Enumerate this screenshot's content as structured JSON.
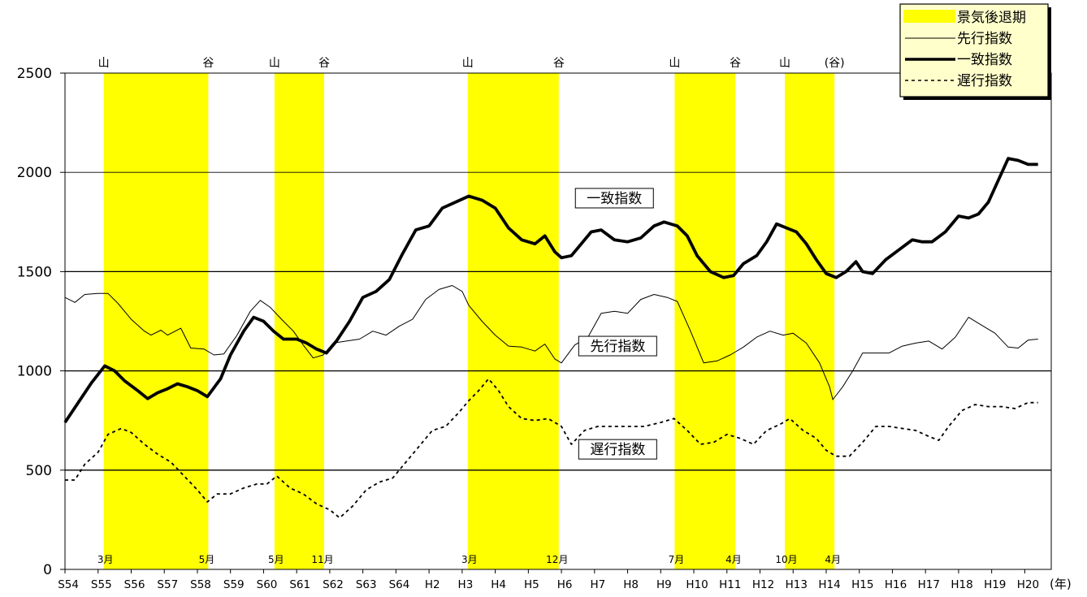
{
  "chart_data": {
    "type": "line",
    "x_unit": "(年)",
    "ylim": [
      0,
      2500
    ],
    "yticks": [
      0,
      500,
      1000,
      1500,
      2000,
      2500
    ],
    "xlabels": [
      "S54",
      "S55",
      "S56",
      "S57",
      "S58",
      "S59",
      "S60",
      "S61",
      "S62",
      "S63",
      "S64",
      "H2",
      "H3",
      "H4",
      "H5",
      "H6",
      "H7",
      "H8",
      "H9",
      "H10",
      "H11",
      "H12",
      "H13",
      "H14",
      "H15",
      "H16",
      "H17",
      "H18",
      "H19",
      "H20"
    ],
    "gridlines": [
      500,
      1000,
      1500,
      2000
    ],
    "legend": {
      "position": "top-right",
      "items": [
        {
          "label": "景気後退期",
          "style": "yellow-band"
        },
        {
          "label": "先行指数",
          "style": "thin-line"
        },
        {
          "label": "一致指数",
          "style": "thick-line"
        },
        {
          "label": "遅行指数",
          "style": "dashed-line"
        }
      ]
    },
    "recessions": [
      {
        "start": 1980.17,
        "end": 1983.33,
        "peak_label": "山",
        "trough_label": "谷",
        "start_month": "3月",
        "end_month": "5月"
      },
      {
        "start": 1985.33,
        "end": 1986.83,
        "peak_label": "山",
        "trough_label": "谷",
        "start_month": "5月",
        "end_month": "11月"
      },
      {
        "start": 1991.17,
        "end": 1993.92,
        "peak_label": "山",
        "trough_label": "谷",
        "start_month": "3月",
        "end_month": "12月"
      },
      {
        "start": 1997.42,
        "end": 1999.25,
        "peak_label": "山",
        "trough_label": "谷",
        "start_month": "7月",
        "end_month": "4月"
      },
      {
        "start": 2000.75,
        "end": 2002.25,
        "peak_label": "山",
        "trough_label": "(谷)",
        "start_month": "10月",
        "end_month": "4月"
      }
    ],
    "inline_labels": [
      {
        "text": "一致指数",
        "x": 1995.6,
        "y": 1870
      },
      {
        "text": "先行指数",
        "x": 1995.7,
        "y": 1125
      },
      {
        "text": "遅行指数",
        "x": 1995.7,
        "y": 605
      }
    ],
    "series": [
      {
        "name": "先行指数",
        "style": "thin",
        "points": [
          [
            1979.0,
            1370
          ],
          [
            1979.3,
            1345
          ],
          [
            1979.6,
            1385
          ],
          [
            1980.0,
            1390
          ],
          [
            1980.3,
            1390
          ],
          [
            1980.6,
            1340
          ],
          [
            1981.0,
            1260
          ],
          [
            1981.4,
            1200
          ],
          [
            1981.6,
            1180
          ],
          [
            1981.9,
            1205
          ],
          [
            1982.1,
            1180
          ],
          [
            1982.5,
            1215
          ],
          [
            1982.8,
            1115
          ],
          [
            1983.2,
            1110
          ],
          [
            1983.5,
            1080
          ],
          [
            1983.8,
            1085
          ],
          [
            1984.2,
            1180
          ],
          [
            1984.6,
            1300
          ],
          [
            1984.9,
            1355
          ],
          [
            1985.2,
            1320
          ],
          [
            1985.6,
            1250
          ],
          [
            1985.9,
            1200
          ],
          [
            1986.2,
            1130
          ],
          [
            1986.5,
            1065
          ],
          [
            1986.8,
            1080
          ],
          [
            1987.1,
            1140
          ],
          [
            1987.5,
            1150
          ],
          [
            1987.9,
            1160
          ],
          [
            1988.3,
            1200
          ],
          [
            1988.7,
            1180
          ],
          [
            1989.1,
            1225
          ],
          [
            1989.5,
            1260
          ],
          [
            1989.9,
            1360
          ],
          [
            1990.3,
            1410
          ],
          [
            1990.7,
            1430
          ],
          [
            1991.0,
            1400
          ],
          [
            1991.2,
            1330
          ],
          [
            1991.6,
            1250
          ],
          [
            1992.0,
            1180
          ],
          [
            1992.4,
            1125
          ],
          [
            1992.8,
            1120
          ],
          [
            1993.2,
            1100
          ],
          [
            1993.5,
            1135
          ],
          [
            1993.8,
            1060
          ],
          [
            1994.0,
            1040
          ],
          [
            1994.4,
            1130
          ],
          [
            1994.8,
            1170
          ],
          [
            1995.2,
            1290
          ],
          [
            1995.6,
            1300
          ],
          [
            1996.0,
            1290
          ],
          [
            1996.4,
            1360
          ],
          [
            1996.8,
            1385
          ],
          [
            1997.2,
            1370
          ],
          [
            1997.5,
            1350
          ],
          [
            1997.9,
            1200
          ],
          [
            1998.3,
            1040
          ],
          [
            1998.7,
            1050
          ],
          [
            1999.1,
            1080
          ],
          [
            1999.5,
            1120
          ],
          [
            1999.9,
            1170
          ],
          [
            2000.3,
            1200
          ],
          [
            2000.7,
            1180
          ],
          [
            2001.0,
            1190
          ],
          [
            2001.4,
            1140
          ],
          [
            2001.8,
            1040
          ],
          [
            2002.1,
            920
          ],
          [
            2002.2,
            855
          ],
          [
            2002.5,
            920
          ],
          [
            2002.8,
            1000
          ],
          [
            2003.1,
            1090
          ],
          [
            2003.5,
            1090
          ],
          [
            2003.9,
            1090
          ],
          [
            2004.3,
            1125
          ],
          [
            2004.7,
            1140
          ],
          [
            2005.1,
            1150
          ],
          [
            2005.5,
            1110
          ],
          [
            2005.9,
            1170
          ],
          [
            2006.3,
            1270
          ],
          [
            2006.7,
            1230
          ],
          [
            2007.1,
            1190
          ],
          [
            2007.5,
            1120
          ],
          [
            2007.8,
            1115
          ],
          [
            2008.1,
            1155
          ],
          [
            2008.4,
            1160
          ]
        ]
      },
      {
        "name": "一致指数",
        "style": "thick",
        "points": [
          [
            1979.0,
            740
          ],
          [
            1979.4,
            840
          ],
          [
            1979.8,
            940
          ],
          [
            1980.2,
            1025
          ],
          [
            1980.5,
            1000
          ],
          [
            1980.8,
            950
          ],
          [
            1981.2,
            900
          ],
          [
            1981.5,
            860
          ],
          [
            1981.8,
            890
          ],
          [
            1982.1,
            910
          ],
          [
            1982.4,
            935
          ],
          [
            1982.7,
            920
          ],
          [
            1983.0,
            900
          ],
          [
            1983.3,
            870
          ],
          [
            1983.7,
            960
          ],
          [
            1984.0,
            1080
          ],
          [
            1984.4,
            1200
          ],
          [
            1984.7,
            1270
          ],
          [
            1985.0,
            1250
          ],
          [
            1985.3,
            1200
          ],
          [
            1985.6,
            1160
          ],
          [
            1986.0,
            1160
          ],
          [
            1986.3,
            1140
          ],
          [
            1986.6,
            1110
          ],
          [
            1986.9,
            1090
          ],
          [
            1987.2,
            1150
          ],
          [
            1987.6,
            1250
          ],
          [
            1988.0,
            1370
          ],
          [
            1988.4,
            1400
          ],
          [
            1988.8,
            1460
          ],
          [
            1989.2,
            1590
          ],
          [
            1989.6,
            1710
          ],
          [
            1990.0,
            1730
          ],
          [
            1990.4,
            1820
          ],
          [
            1990.8,
            1850
          ],
          [
            1991.2,
            1880
          ],
          [
            1991.6,
            1860
          ],
          [
            1992.0,
            1820
          ],
          [
            1992.4,
            1720
          ],
          [
            1992.8,
            1660
          ],
          [
            1993.2,
            1640
          ],
          [
            1993.5,
            1680
          ],
          [
            1993.8,
            1600
          ],
          [
            1994.0,
            1570
          ],
          [
            1994.3,
            1580
          ],
          [
            1994.6,
            1640
          ],
          [
            1994.9,
            1700
          ],
          [
            1995.2,
            1710
          ],
          [
            1995.6,
            1660
          ],
          [
            1996.0,
            1650
          ],
          [
            1996.4,
            1670
          ],
          [
            1996.8,
            1730
          ],
          [
            1997.1,
            1750
          ],
          [
            1997.5,
            1730
          ],
          [
            1997.8,
            1680
          ],
          [
            1998.1,
            1580
          ],
          [
            1998.5,
            1500
          ],
          [
            1998.9,
            1470
          ],
          [
            1999.2,
            1480
          ],
          [
            1999.5,
            1540
          ],
          [
            1999.9,
            1580
          ],
          [
            2000.2,
            1650
          ],
          [
            2000.5,
            1740
          ],
          [
            2000.8,
            1720
          ],
          [
            2001.1,
            1700
          ],
          [
            2001.4,
            1640
          ],
          [
            2001.7,
            1560
          ],
          [
            2002.0,
            1490
          ],
          [
            2002.3,
            1470
          ],
          [
            2002.6,
            1500
          ],
          [
            2002.9,
            1550
          ],
          [
            2003.1,
            1500
          ],
          [
            2003.4,
            1490
          ],
          [
            2003.8,
            1560
          ],
          [
            2004.2,
            1610
          ],
          [
            2004.6,
            1660
          ],
          [
            2004.9,
            1650
          ],
          [
            2005.2,
            1650
          ],
          [
            2005.6,
            1700
          ],
          [
            2006.0,
            1780
          ],
          [
            2006.3,
            1770
          ],
          [
            2006.6,
            1790
          ],
          [
            2006.9,
            1850
          ],
          [
            2007.2,
            1960
          ],
          [
            2007.5,
            2070
          ],
          [
            2007.8,
            2060
          ],
          [
            2008.1,
            2040
          ],
          [
            2008.4,
            2040
          ]
        ]
      },
      {
        "name": "遅行指数",
        "style": "dashed",
        "points": [
          [
            1979.0,
            450
          ],
          [
            1979.3,
            450
          ],
          [
            1979.6,
            530
          ],
          [
            1980.0,
            590
          ],
          [
            1980.3,
            680
          ],
          [
            1980.7,
            710
          ],
          [
            1981.0,
            690
          ],
          [
            1981.4,
            630
          ],
          [
            1981.8,
            580
          ],
          [
            1982.2,
            540
          ],
          [
            1982.6,
            470
          ],
          [
            1983.0,
            400
          ],
          [
            1983.3,
            340
          ],
          [
            1983.6,
            380
          ],
          [
            1984.0,
            380
          ],
          [
            1984.4,
            410
          ],
          [
            1984.8,
            430
          ],
          [
            1985.1,
            430
          ],
          [
            1985.4,
            470
          ],
          [
            1985.8,
            410
          ],
          [
            1986.2,
            380
          ],
          [
            1986.6,
            330
          ],
          [
            1987.0,
            300
          ],
          [
            1987.3,
            260
          ],
          [
            1987.7,
            320
          ],
          [
            1988.1,
            400
          ],
          [
            1988.5,
            440
          ],
          [
            1988.9,
            460
          ],
          [
            1989.3,
            540
          ],
          [
            1989.7,
            620
          ],
          [
            1990.1,
            700
          ],
          [
            1990.5,
            720
          ],
          [
            1990.9,
            790
          ],
          [
            1991.2,
            850
          ],
          [
            1991.5,
            900
          ],
          [
            1991.8,
            960
          ],
          [
            1992.1,
            900
          ],
          [
            1992.4,
            820
          ],
          [
            1992.8,
            760
          ],
          [
            1993.2,
            750
          ],
          [
            1993.6,
            760
          ],
          [
            1994.0,
            720
          ],
          [
            1994.3,
            630
          ],
          [
            1994.7,
            700
          ],
          [
            1995.1,
            720
          ],
          [
            1995.5,
            720
          ],
          [
            1996.0,
            720
          ],
          [
            1996.5,
            720
          ],
          [
            1997.0,
            740
          ],
          [
            1997.4,
            760
          ],
          [
            1997.8,
            700
          ],
          [
            1998.2,
            630
          ],
          [
            1998.6,
            640
          ],
          [
            1999.0,
            680
          ],
          [
            1999.4,
            660
          ],
          [
            1999.8,
            630
          ],
          [
            2000.2,
            700
          ],
          [
            2000.6,
            730
          ],
          [
            2000.9,
            760
          ],
          [
            2001.3,
            700
          ],
          [
            2001.7,
            660
          ],
          [
            2002.0,
            600
          ],
          [
            2002.3,
            570
          ],
          [
            2002.7,
            570
          ],
          [
            2003.1,
            640
          ],
          [
            2003.5,
            720
          ],
          [
            2003.9,
            720
          ],
          [
            2004.3,
            710
          ],
          [
            2004.7,
            700
          ],
          [
            2005.1,
            670
          ],
          [
            2005.4,
            650
          ],
          [
            2005.7,
            720
          ],
          [
            2006.1,
            800
          ],
          [
            2006.5,
            830
          ],
          [
            2006.9,
            820
          ],
          [
            2007.3,
            820
          ],
          [
            2007.7,
            810
          ],
          [
            2008.1,
            840
          ],
          [
            2008.4,
            840
          ]
        ]
      }
    ]
  }
}
